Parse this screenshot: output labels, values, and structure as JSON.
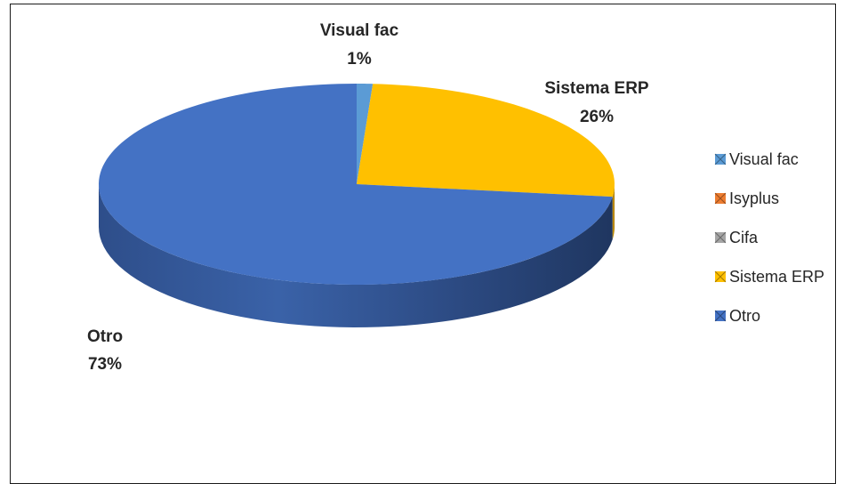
{
  "chart_data": {
    "type": "pie",
    "style": "3d",
    "categories": [
      "Visual fac",
      "Isyplus",
      "Cifa",
      "Sistema ERP",
      "Otro"
    ],
    "values": [
      1,
      0,
      0,
      26,
      73
    ],
    "value_labels": [
      "1%",
      "0%",
      "0%",
      "26%",
      "73%"
    ],
    "colors": [
      "#5B9BD5",
      "#ED7D31",
      "#A5A5A5",
      "#FFC000",
      "#4472C4"
    ],
    "legend_position": "right",
    "data_labels_shown": [
      "Visual fac",
      "Sistema ERP",
      "Otro"
    ]
  }
}
